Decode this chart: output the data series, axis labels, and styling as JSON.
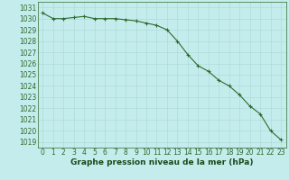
{
  "x": [
    0,
    1,
    2,
    3,
    4,
    5,
    6,
    7,
    8,
    9,
    10,
    11,
    12,
    13,
    14,
    15,
    16,
    17,
    18,
    19,
    20,
    21,
    22,
    23
  ],
  "y": [
    1030.5,
    1030.0,
    1030.0,
    1030.1,
    1030.2,
    1030.0,
    1030.0,
    1030.0,
    1029.9,
    1029.8,
    1029.6,
    1029.4,
    1029.0,
    1028.0,
    1026.8,
    1025.8,
    1025.3,
    1024.5,
    1024.0,
    1023.2,
    1022.2,
    1021.5,
    1020.0,
    1019.2
  ],
  "line_color": "#2d6a2d",
  "marker": "+",
  "marker_size": 3,
  "line_width": 0.8,
  "bg_color": "#c5ecec",
  "grid_color": "#a8d8d8",
  "xlabel": "Graphe pression niveau de la mer (hPa)",
  "xlabel_fontsize": 6.5,
  "xlabel_color": "#1a4a1a",
  "tick_color": "#2d6a2d",
  "tick_fontsize": 5.5,
  "ylim": [
    1018.5,
    1031.5
  ],
  "yticks": [
    1019,
    1020,
    1021,
    1022,
    1023,
    1024,
    1025,
    1026,
    1027,
    1028,
    1029,
    1030,
    1031
  ],
  "xlim": [
    -0.5,
    23.5
  ],
  "xticks": [
    0,
    1,
    2,
    3,
    4,
    5,
    6,
    7,
    8,
    9,
    10,
    11,
    12,
    13,
    14,
    15,
    16,
    17,
    18,
    19,
    20,
    21,
    22,
    23
  ],
  "markeredgewidth": 0.8
}
